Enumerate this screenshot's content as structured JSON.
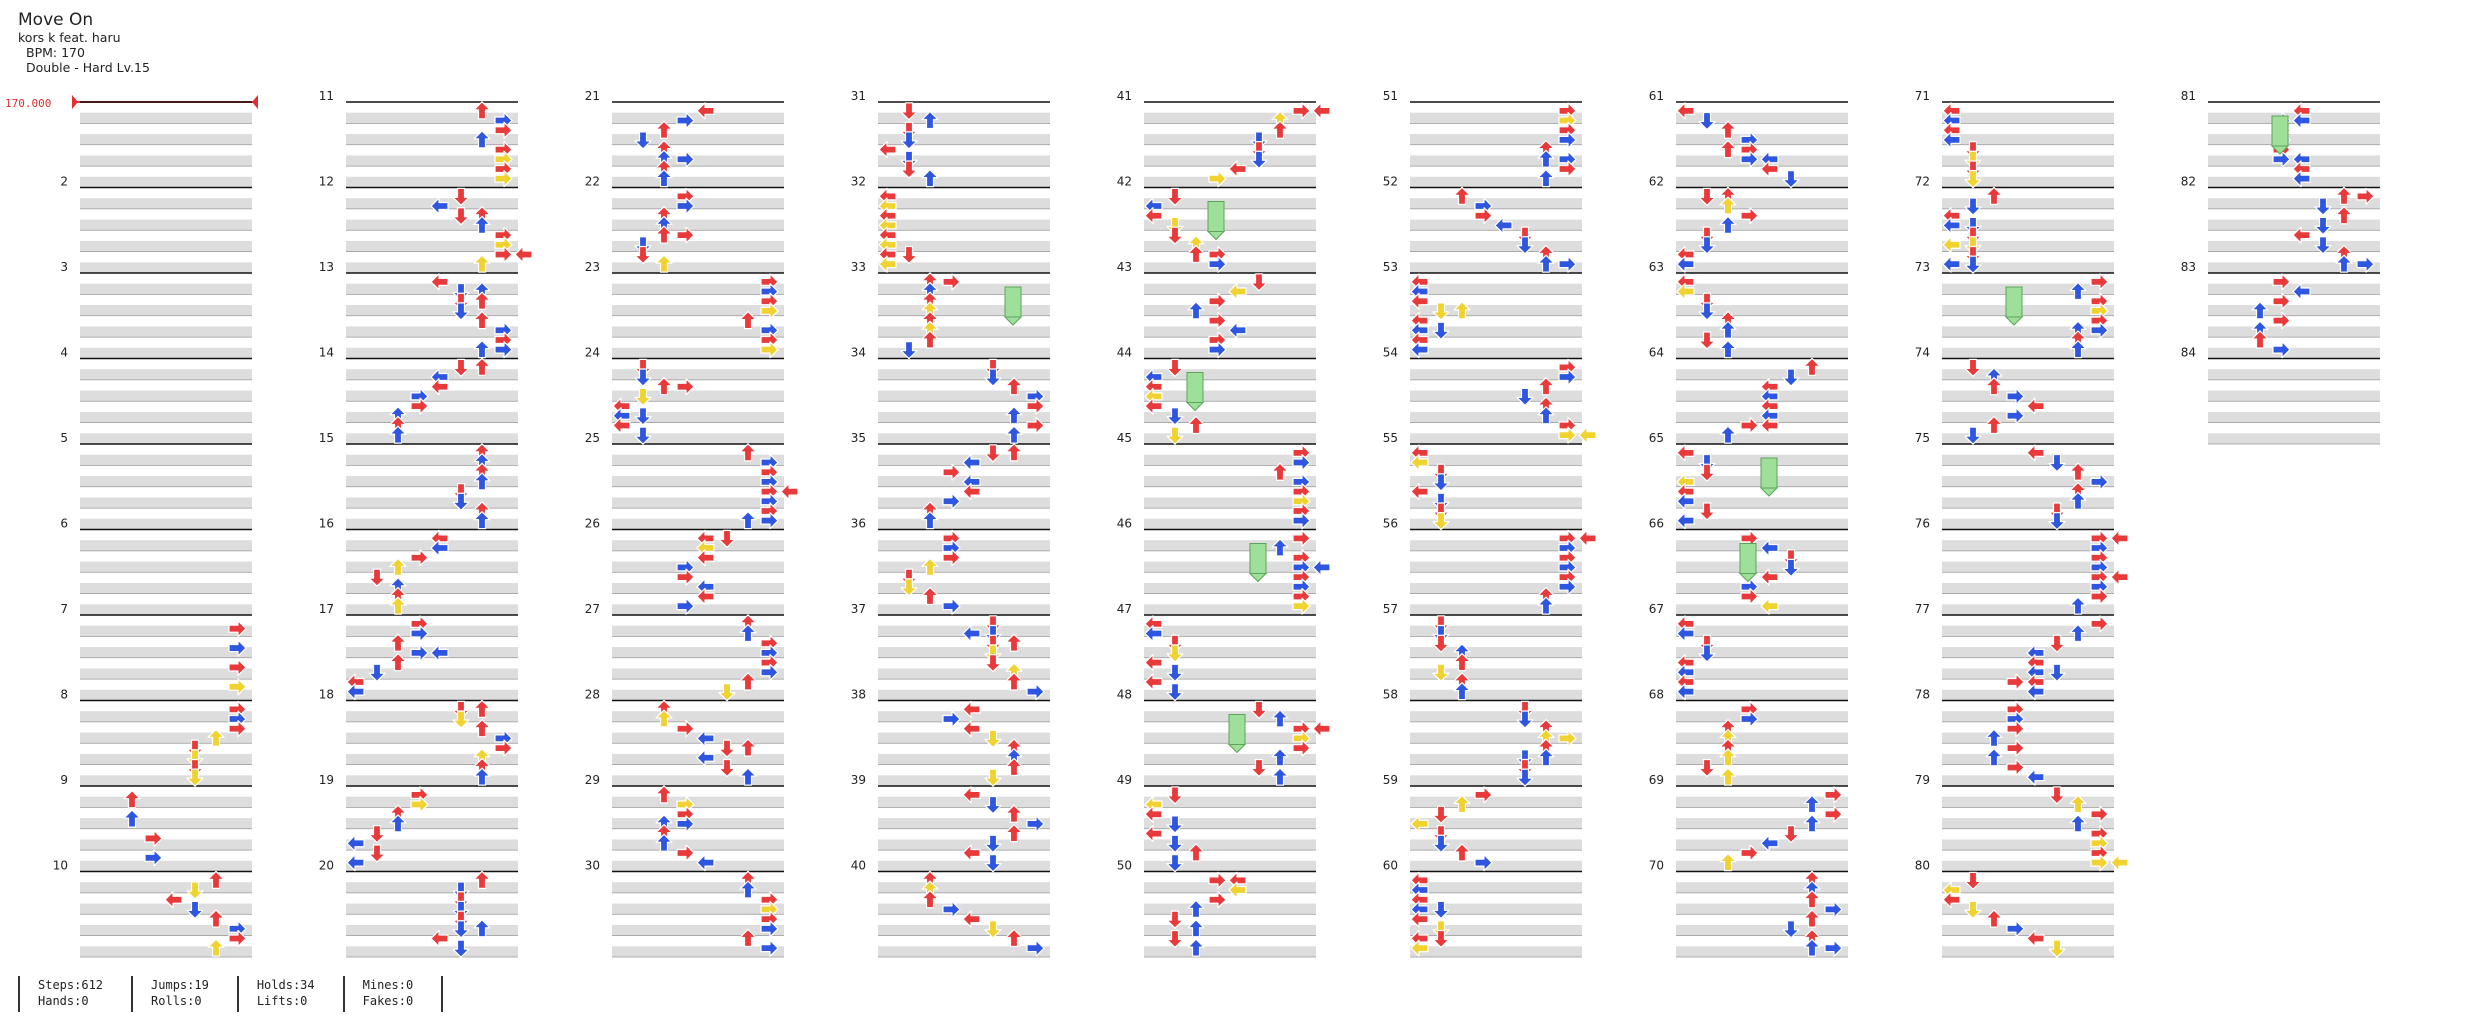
{
  "song": {
    "title": "Move On",
    "artist": "kors k feat. haru",
    "bpm_text": "BPM: 170",
    "chart_text": "Double - Hard  Lv.15"
  },
  "bpm_marker": "170.000",
  "measure_count": 84,
  "stats": {
    "steps": "Steps:612",
    "hands": "Hands:0",
    "jumps": "Jumps:19",
    "rolls": "Rolls:0",
    "holds": "Holds:34",
    "lifts": "Lifts:0",
    "mines": "Mines:0",
    "fakes": "Fakes:0"
  },
  "colors": {
    "quarter_note": "#e83a3a",
    "eighth_note": "#2f56e0",
    "sixteenth_note": "#f0d230",
    "hold_body": "#9ee09a",
    "stripe": "#dddddd",
    "bpm_line": "#e03030"
  }
}
